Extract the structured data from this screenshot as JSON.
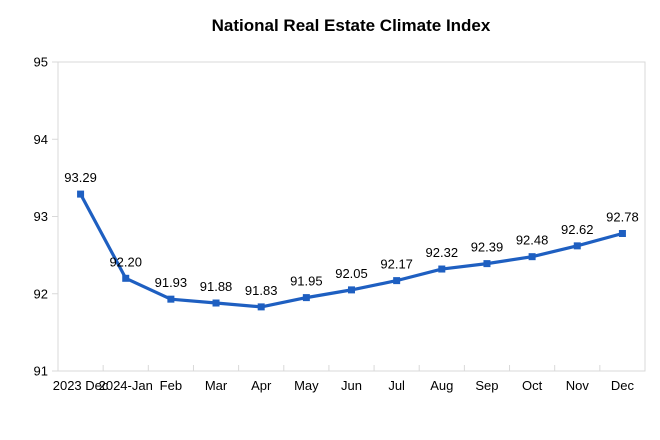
{
  "title": "National Real Estate Climate Index",
  "chart_data": {
    "type": "line",
    "title": "National Real Estate Climate Index",
    "categories": [
      "2023 Dec",
      "2024-Jan",
      "Feb",
      "Mar",
      "Apr",
      "May",
      "Jun",
      "Jul",
      "Aug",
      "Sep",
      "Oct",
      "Nov",
      "Dec"
    ],
    "values": [
      93.29,
      92.2,
      91.93,
      91.88,
      91.83,
      91.95,
      92.05,
      92.17,
      92.32,
      92.39,
      92.48,
      92.62,
      92.78
    ],
    "value_labels": [
      "93.29",
      "92.20",
      "91.93",
      "91.88",
      "91.83",
      "91.95",
      "92.05",
      "92.17",
      "92.32",
      "92.39",
      "92.48",
      "92.62",
      "92.78"
    ],
    "xlabel": "",
    "ylabel": "",
    "ylim": [
      91,
      95
    ],
    "yticks": [
      91,
      92,
      93,
      94,
      95
    ],
    "grid": false,
    "legend": "none",
    "line_color": "#1e5fc1",
    "marker": "square",
    "marker_color": "#1e5fc1",
    "border_color": "#d9d9d9",
    "tick_color": "#d9d9d9",
    "text_color": "#000000",
    "background_color": "#ffffff"
  }
}
